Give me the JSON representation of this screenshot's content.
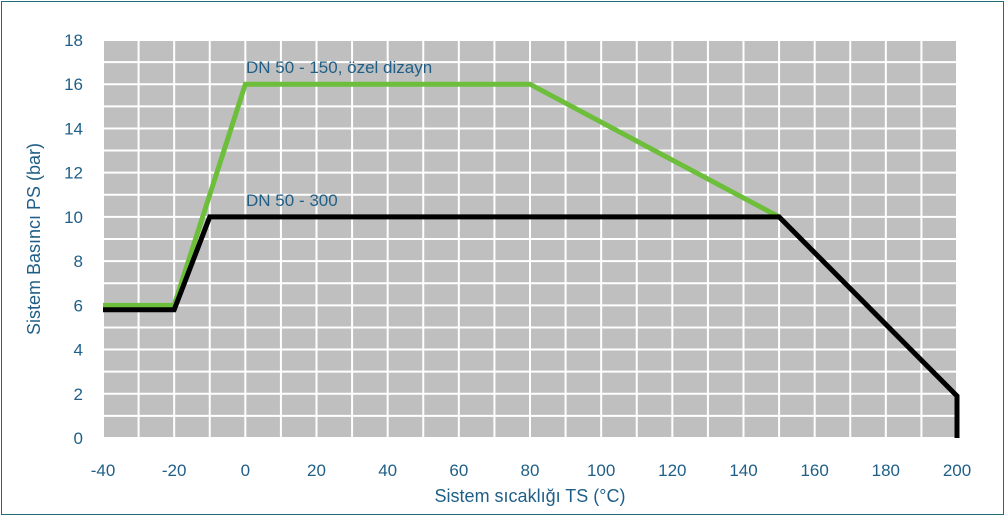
{
  "chart_data": {
    "type": "line",
    "title": "",
    "xlabel": "Sistem sıcaklığı TS (°C)",
    "ylabel": "Sistem Basıncı PS (bar)",
    "xlim": [
      -40,
      200
    ],
    "ylim": [
      0,
      18
    ],
    "x_ticks": [
      "-40",
      "-20",
      "0",
      "20",
      "40",
      "60",
      "80",
      "100",
      "120",
      "140",
      "160",
      "180",
      "200"
    ],
    "y_ticks": [
      "0",
      "2",
      "4",
      "6",
      "8",
      "10",
      "12",
      "14",
      "16",
      "18"
    ],
    "grid": true,
    "plot_background": "#bfbfbf",
    "grid_color": "#ffffff",
    "text_color": "#1f5f87",
    "series": [
      {
        "name": "DN 50 - 150, özel dizayn",
        "color": "#6dbf3b",
        "points": [
          [
            -40,
            6
          ],
          [
            -20,
            6
          ],
          [
            0,
            16
          ],
          [
            80,
            16
          ],
          [
            150,
            10
          ]
        ]
      },
      {
        "name": "DN 50 - 300",
        "color": "#000000",
        "points": [
          [
            -40,
            5.8
          ],
          [
            -20,
            5.8
          ],
          [
            -10,
            10
          ],
          [
            150,
            10
          ],
          [
            200,
            1.9
          ],
          [
            200,
            0
          ]
        ]
      }
    ],
    "annotations": [
      {
        "text": "DN 50 - 150, özel dizayn",
        "x": 0.2,
        "y": 16.5
      },
      {
        "text": "DN 50 - 300",
        "x": 0.2,
        "y": 10.5
      }
    ]
  }
}
